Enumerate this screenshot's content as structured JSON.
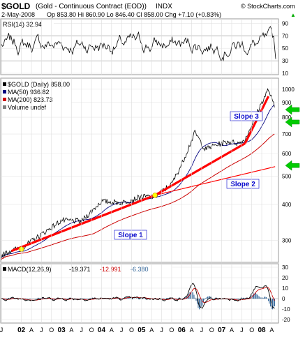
{
  "header": {
    "symbol": "$GOLD",
    "name": "(Gold - Continuous Contract (EOD))",
    "exchange": "INDX",
    "watermark": "© StockCharts.com",
    "date": "2-May-2008",
    "ohlc_line": "Op 853.80  Hi 860.90  Lo 846.40  Cl 858.00  Chg +7.10 (+0.83%)",
    "chg_arrow": "▲"
  },
  "chart_data": [
    {
      "type": "line",
      "panel": "rsi",
      "legend": "RSI(14) 32.94",
      "yticks": [
        10,
        30,
        50,
        70,
        90
      ],
      "ylim": [
        10,
        95
      ],
      "overbought": 70,
      "oversold": 30,
      "last_value": 32.94
    },
    {
      "type": "line",
      "panel": "price",
      "legend": [
        {
          "label": "$GOLD (Daily) 858.00",
          "color": "#000000"
        },
        {
          "label": "MA(50) 936.82",
          "color": "#00007f"
        },
        {
          "label": "MA(200) 823.73",
          "color": "#cc0000"
        },
        {
          "label": "Volume undef",
          "color": "#7f7f7f"
        }
      ],
      "yscale": "log",
      "ylim": [
        255,
        1080
      ],
      "yticks": [
        300,
        400,
        500,
        600,
        700,
        800,
        900,
        1000
      ],
      "x_dates": [
        "2001-07",
        "2001-10",
        "2002-01",
        "2002-07",
        "2003-01",
        "2003-07",
        "2004-01",
        "2004-07",
        "2005-01",
        "2005-05",
        "2005-10",
        "2006-01",
        "2006-05",
        "2006-08",
        "2006-11",
        "2007-03",
        "2007-06",
        "2007-08",
        "2007-11",
        "2008-01",
        "2008-03",
        "2008-04",
        "2008-05"
      ],
      "close": [
        266,
        278,
        282,
        315,
        352,
        350,
        410,
        405,
        425,
        425,
        470,
        550,
        710,
        620,
        640,
        660,
        650,
        670,
        800,
        900,
        1000,
        920,
        858
      ],
      "trendlines": [
        {
          "label": "Slope 1",
          "start": [
            "2001-10",
            276
          ],
          "end": [
            "2005-05",
            430
          ],
          "color": "#ff0000"
        },
        {
          "label": "Slope 2",
          "start": [
            "2005-05",
            430
          ],
          "end": [
            "2007-08",
            650
          ],
          "color": "#ff0000"
        },
        {
          "label": "Slope 3",
          "start": [
            "2007-08",
            650
          ],
          "end": [
            "2008-03",
            945
          ],
          "color": "#ff0000"
        },
        {
          "label": "",
          "start": [
            "2005-05",
            430
          ],
          "end": [
            "2008-05",
            540
          ],
          "color": "#ff0000"
        }
      ],
      "markers": [
        [
          "2002-01",
          280
        ],
        [
          "2005-05",
          430
        ]
      ],
      "support_arrows": [
        850,
        770,
        545
      ]
    },
    {
      "type": "line",
      "panel": "macd",
      "legend": [
        {
          "label": "MACD(12,26,9)",
          "value": "-19.371",
          "color": "#000000"
        },
        {
          "label": "",
          "value": "-12.991",
          "color": "#cc0000"
        },
        {
          "label": "",
          "value": "-6.380",
          "color": "#336699"
        }
      ],
      "yticks": [
        -20,
        -10,
        0,
        10,
        20,
        30
      ],
      "ylim": [
        -22,
        32
      ]
    }
  ],
  "x_axis": {
    "tick_labels": [
      "J",
      "02",
      "A",
      "J",
      "O",
      "03",
      "A",
      "J",
      "O",
      "04",
      "A",
      "J",
      "O",
      "05",
      "A",
      "J",
      "O",
      "06",
      "A",
      "J",
      "O",
      "07",
      "A",
      "J",
      "O",
      "08",
      "A"
    ],
    "tick_dates": [
      "2001-07",
      "2002-01",
      "2002-04",
      "2002-07",
      "2002-10",
      "2003-01",
      "2003-04",
      "2003-07",
      "2003-10",
      "2004-01",
      "2004-04",
      "2004-07",
      "2004-10",
      "2005-01",
      "2005-04",
      "2005-07",
      "2005-10",
      "2006-01",
      "2006-04",
      "2006-07",
      "2006-10",
      "2007-01",
      "2007-04",
      "2007-07",
      "2007-10",
      "2008-01",
      "2008-04"
    ]
  },
  "colors": {
    "price": "#000000",
    "ma50": "#00007f",
    "ma200": "#cc0000",
    "trend": "#ff0000",
    "label_text": "#0000cc",
    "arrow": "#00cc00",
    "marker": "#ffff00",
    "macd_hist": "#336699"
  }
}
